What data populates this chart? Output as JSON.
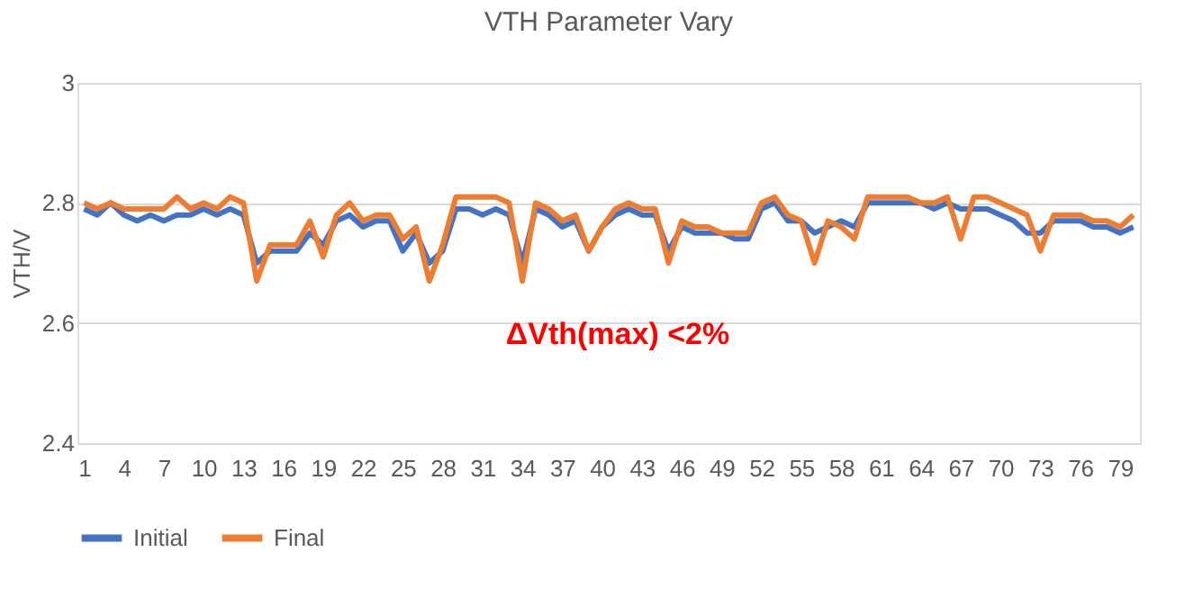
{
  "chart_data": {
    "type": "line",
    "title": "VTH Parameter Vary",
    "ylabel": "VTH/V",
    "categories": [
      "1",
      null,
      null,
      "4",
      null,
      null,
      "7",
      null,
      null,
      "10",
      null,
      null,
      "13",
      null,
      null,
      "16",
      null,
      null,
      "19",
      null,
      null,
      "22",
      null,
      null,
      "25",
      null,
      null,
      "28",
      null,
      null,
      "31",
      null,
      null,
      "34",
      null,
      null,
      "37",
      null,
      null,
      "40",
      null,
      null,
      "43",
      null,
      null,
      "46",
      null,
      null,
      "49",
      null,
      null,
      "52",
      null,
      null,
      "55",
      null,
      null,
      "58",
      null,
      null,
      "61",
      null,
      null,
      "64",
      null,
      null,
      "67",
      null,
      null,
      "70",
      null,
      null,
      "73",
      null,
      null,
      "76",
      null,
      null,
      "79",
      null
    ],
    "series": [
      {
        "name": "Initial",
        "color": "#4472c4",
        "values": [
          2.79,
          2.78,
          2.8,
          2.78,
          2.77,
          2.78,
          2.77,
          2.78,
          2.78,
          2.79,
          2.78,
          2.79,
          2.78,
          2.7,
          2.72,
          2.72,
          2.72,
          2.75,
          2.73,
          2.77,
          2.78,
          2.76,
          2.77,
          2.77,
          2.72,
          2.75,
          2.7,
          2.72,
          2.79,
          2.79,
          2.78,
          2.79,
          2.78,
          2.7,
          2.79,
          2.78,
          2.76,
          2.77,
          2.72,
          2.76,
          2.78,
          2.79,
          2.78,
          2.78,
          2.72,
          2.76,
          2.75,
          2.75,
          2.75,
          2.74,
          2.74,
          2.79,
          2.8,
          2.77,
          2.77,
          2.75,
          2.76,
          2.77,
          2.76,
          2.8,
          2.8,
          2.8,
          2.8,
          2.8,
          2.79,
          2.8,
          2.79,
          2.79,
          2.79,
          2.78,
          2.77,
          2.75,
          2.75,
          2.77,
          2.77,
          2.77,
          2.76,
          2.76,
          2.75,
          2.76
        ]
      },
      {
        "name": "Final",
        "color": "#ed7d31",
        "values": [
          2.8,
          2.79,
          2.8,
          2.79,
          2.79,
          2.79,
          2.79,
          2.81,
          2.79,
          2.8,
          2.79,
          2.81,
          2.8,
          2.67,
          2.73,
          2.73,
          2.73,
          2.77,
          2.71,
          2.78,
          2.8,
          2.77,
          2.78,
          2.78,
          2.74,
          2.76,
          2.67,
          2.73,
          2.81,
          2.81,
          2.81,
          2.81,
          2.8,
          2.67,
          2.8,
          2.79,
          2.77,
          2.78,
          2.72,
          2.76,
          2.79,
          2.8,
          2.79,
          2.79,
          2.7,
          2.77,
          2.76,
          2.76,
          2.75,
          2.75,
          2.75,
          2.8,
          2.81,
          2.78,
          2.77,
          2.7,
          2.77,
          2.76,
          2.74,
          2.81,
          2.81,
          2.81,
          2.81,
          2.8,
          2.8,
          2.81,
          2.74,
          2.81,
          2.81,
          2.8,
          2.79,
          2.78,
          2.72,
          2.78,
          2.78,
          2.78,
          2.77,
          2.77,
          2.76,
          2.78
        ]
      }
    ],
    "ylim": [
      2.4,
      3
    ],
    "yticks": [
      2.4,
      2.6,
      2.8,
      3
    ],
    "grid": "y",
    "legend": "bottom",
    "marker": "none",
    "line_style": "solid",
    "annotations": [
      "ΔVth(max) <2%"
    ]
  }
}
